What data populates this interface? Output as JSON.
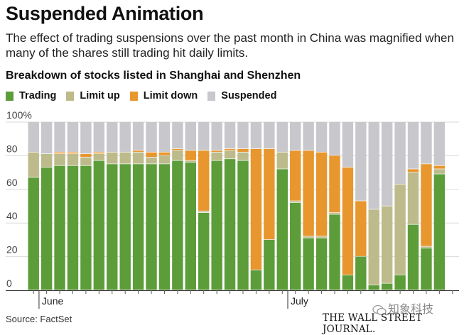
{
  "header": {
    "title": "Suspended Animation",
    "subtitle": "The effect of trading suspensions over the past month in China was magnified when many of the shares still trading hit daily limits.",
    "chart_heading": "Breakdown of stocks listed in Shanghai and Shenzhen"
  },
  "footer": {
    "source": "Source: FactSet",
    "masthead": "THE WALL STREET JOURNAL.",
    "watermark": "知象科技"
  },
  "colors": {
    "trading": "#5c9d3a",
    "limit_up": "#bdbb8b",
    "limit_down": "#e8962e",
    "suspended": "#c8c8cc"
  },
  "chart_data": {
    "type": "bar",
    "stacked": true,
    "title": "Breakdown of stocks listed in Shanghai and Shenzhen",
    "ylabel": "",
    "ylim": [
      0,
      100
    ],
    "y_ticks": [
      0,
      20,
      40,
      60,
      80,
      100
    ],
    "y_tick_labels": [
      "0",
      "20",
      "40",
      "60",
      "80",
      "100%"
    ],
    "x_labels": [
      {
        "label": "June",
        "index": 1
      },
      {
        "label": "July",
        "index": 20
      }
    ],
    "legend": [
      "Trading",
      "Limit up",
      "Limit down",
      "Suspended"
    ],
    "categories": [
      "1",
      "2",
      "3",
      "4",
      "5",
      "6",
      "7",
      "8",
      "9",
      "10",
      "11",
      "12",
      "13",
      "14",
      "15",
      "16",
      "17",
      "18",
      "19",
      "20",
      "21",
      "22",
      "23",
      "24",
      "25",
      "26",
      "27",
      "28",
      "29",
      "30",
      "31",
      "32",
      "33"
    ],
    "series": [
      {
        "name": "Trading",
        "values": [
          67,
          73,
          74,
          74,
          74,
          77,
          75,
          75,
          75,
          75,
          75,
          77,
          76,
          46,
          77,
          78,
          77,
          12,
          30,
          72,
          52,
          31,
          31,
          45,
          9,
          20,
          3,
          4,
          9,
          39,
          25,
          69,
          0
        ]
      },
      {
        "name": "Limit up",
        "values": [
          15,
          8,
          7,
          7,
          5,
          4,
          7,
          7,
          7,
          4,
          5,
          6,
          1,
          1,
          5,
          5,
          5,
          0,
          0,
          10,
          1,
          1,
          1,
          1,
          0,
          0,
          45,
          46,
          54,
          31,
          1,
          3,
          0
        ]
      },
      {
        "name": "Limit down",
        "values": [
          0,
          0,
          1,
          1,
          2,
          1,
          0,
          0,
          1,
          3,
          2,
          1,
          6,
          36,
          1,
          1,
          2,
          72,
          54,
          0,
          30,
          51,
          50,
          34,
          64,
          33,
          0,
          0,
          0,
          2,
          49,
          2,
          0
        ]
      },
      {
        "name": "Suspended",
        "values": [
          18,
          19,
          18,
          18,
          19,
          18,
          18,
          18,
          17,
          18,
          18,
          16,
          17,
          17,
          17,
          16,
          16,
          16,
          16,
          18,
          17,
          17,
          18,
          20,
          27,
          47,
          52,
          50,
          37,
          28,
          25,
          26,
          0
        ]
      }
    ]
  }
}
